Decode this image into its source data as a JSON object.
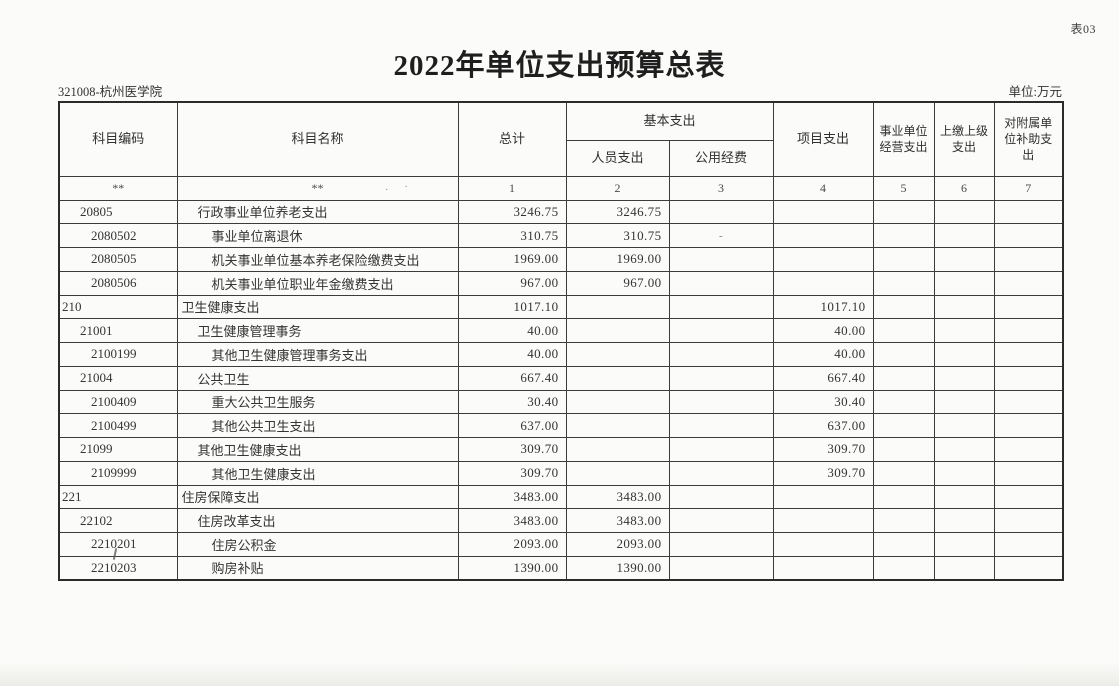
{
  "page": {
    "sheet_label": "表03",
    "title": "2022年单位支出预算总表",
    "org_label": "321008-杭州医学院",
    "unit_label": "单位:万元"
  },
  "table": {
    "headers": {
      "subject_code": "科目编码",
      "subject_name": "科目名称",
      "total": "总计",
      "basic": "基本支出",
      "personnel": "人员支出",
      "public_funds": "公用经费",
      "project": "项目支出",
      "operating": "事业单位经营支出",
      "remit_upper": "上缴上级支出",
      "affiliate_subsidy": "对附属单位补助支出"
    },
    "index_row": [
      "**",
      "**",
      "1",
      "2",
      "3",
      "4",
      "5",
      "6",
      "7"
    ],
    "index_row_marks": ". ·",
    "rows": [
      {
        "code": "20805",
        "name": "行政事业单位养老支出",
        "level": 2,
        "total": "3246.75",
        "personnel": "3246.75",
        "public": "",
        "project": "",
        "operating": "",
        "remit": "",
        "subsidy": ""
      },
      {
        "code": "2080502",
        "name": "事业单位离退休",
        "level": 3,
        "total": "310.75",
        "personnel": "310.75",
        "public": "-",
        "project": "",
        "operating": "",
        "remit": "",
        "subsidy": ""
      },
      {
        "code": "2080505",
        "name": "机关事业单位基本养老保险缴费支出",
        "level": 3,
        "total": "1969.00",
        "personnel": "1969.00",
        "public": "",
        "project": "",
        "operating": "",
        "remit": "",
        "subsidy": ""
      },
      {
        "code": "2080506",
        "name": "机关事业单位职业年金缴费支出",
        "level": 3,
        "total": "967.00",
        "personnel": "967.00",
        "public": "",
        "project": "",
        "operating": "",
        "remit": "",
        "subsidy": ""
      },
      {
        "code": "210",
        "name": "卫生健康支出",
        "level": 1,
        "total": "1017.10",
        "personnel": "",
        "public": "",
        "project": "1017.10",
        "operating": "",
        "remit": "",
        "subsidy": ""
      },
      {
        "code": "21001",
        "name": "卫生健康管理事务",
        "level": 2,
        "total": "40.00",
        "personnel": "",
        "public": "",
        "project": "40.00",
        "operating": "",
        "remit": "",
        "subsidy": ""
      },
      {
        "code": "2100199",
        "name": "其他卫生健康管理事务支出",
        "level": 3,
        "total": "40.00",
        "personnel": "",
        "public": "",
        "project": "40.00",
        "operating": "",
        "remit": "",
        "subsidy": ""
      },
      {
        "code": "21004",
        "name": "公共卫生",
        "level": 2,
        "total": "667.40",
        "personnel": "",
        "public": "",
        "project": "667.40",
        "operating": "",
        "remit": "",
        "subsidy": ""
      },
      {
        "code": "2100409",
        "name": "重大公共卫生服务",
        "level": 3,
        "total": "30.40",
        "personnel": "",
        "public": "",
        "project": "30.40",
        "operating": "",
        "remit": "",
        "subsidy": ""
      },
      {
        "code": "2100499",
        "name": "其他公共卫生支出",
        "level": 3,
        "total": "637.00",
        "personnel": "",
        "public": "",
        "project": "637.00",
        "operating": "",
        "remit": "",
        "subsidy": ""
      },
      {
        "code": "21099",
        "name": "其他卫生健康支出",
        "level": 2,
        "total": "309.70",
        "personnel": "",
        "public": "",
        "project": "309.70",
        "operating": "",
        "remit": "",
        "subsidy": ""
      },
      {
        "code": "2109999",
        "name": "其他卫生健康支出",
        "level": 3,
        "total": "309.70",
        "personnel": "",
        "public": "",
        "project": "309.70",
        "operating": "",
        "remit": "",
        "subsidy": ""
      },
      {
        "code": "221",
        "name": "住房保障支出",
        "level": 1,
        "total": "3483.00",
        "personnel": "3483.00",
        "public": "",
        "project": "",
        "operating": "",
        "remit": "",
        "subsidy": ""
      },
      {
        "code": "22102",
        "name": "住房改革支出",
        "level": 2,
        "total": "3483.00",
        "personnel": "3483.00",
        "public": "",
        "project": "",
        "operating": "",
        "remit": "",
        "subsidy": ""
      },
      {
        "code": "2210201",
        "name": "住房公积金",
        "level": 3,
        "total": "2093.00",
        "personnel": "2093.00",
        "public": "",
        "project": "",
        "operating": "",
        "remit": "",
        "subsidy": ""
      },
      {
        "code": "2210203",
        "name": "购房补贴",
        "level": 3,
        "total": "1390.00",
        "personnel": "1390.00",
        "public": "",
        "project": "",
        "operating": "",
        "remit": "",
        "subsidy": ""
      }
    ]
  }
}
